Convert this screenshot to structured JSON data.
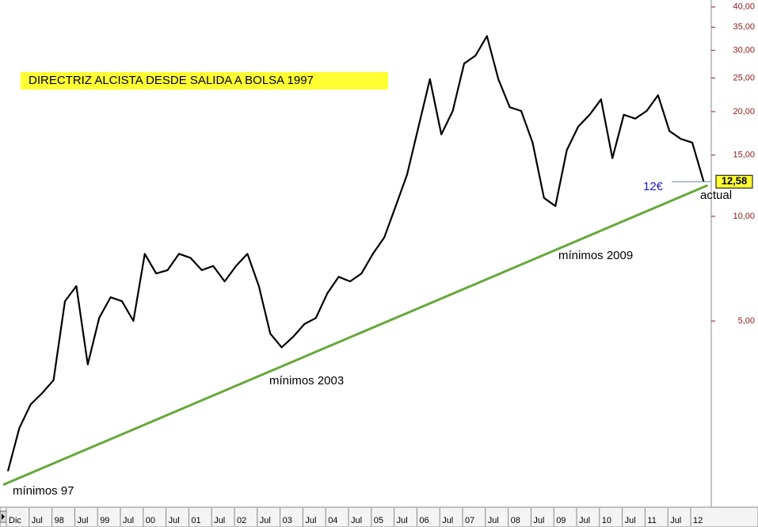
{
  "chart_data": {
    "type": "line",
    "title": "DIRECTRIZ ALCISTA DESDE SALIDA A BOLSA 1997",
    "x_labels": [
      "Dic",
      "Jul",
      "98",
      "Jul",
      "99",
      "Jul",
      "00",
      "Jul",
      "01",
      "Jul",
      "02",
      "Jul",
      "03",
      "Jul",
      "04",
      "Jul",
      "05",
      "Jul",
      "06",
      "Jul",
      "07",
      "Jul",
      "08",
      "Jul",
      "09",
      "Jul",
      "10",
      "Jul",
      "11",
      "Jul",
      "12"
    ],
    "log_scale": true,
    "ylim": [
      1.48,
      41.9
    ],
    "yticks": [
      {
        "value": 5,
        "label": "5,00"
      },
      {
        "value": 10,
        "label": "10,00"
      },
      {
        "value": 15,
        "label": "15,00"
      },
      {
        "value": 20,
        "label": "20,00"
      },
      {
        "value": 25,
        "label": "25,00"
      },
      {
        "value": 30,
        "label": "30,00"
      },
      {
        "value": 35,
        "label": "35,00"
      },
      {
        "value": 40,
        "label": "40,00"
      }
    ],
    "series": [
      {
        "color": "#000000",
        "values": [
          1.85,
          2.46,
          2.88,
          3.1,
          3.38,
          5.7,
          6.3,
          3.75,
          5.1,
          5.85,
          5.7,
          5.0,
          7.8,
          6.85,
          7.0,
          7.8,
          7.6,
          7.0,
          7.2,
          6.5,
          7.2,
          7.8,
          6.3,
          4.6,
          4.2,
          4.5,
          4.9,
          5.1,
          6.0,
          6.7,
          6.5,
          6.85,
          7.8,
          8.7,
          10.7,
          13.2,
          18.1,
          24.8,
          17.2,
          20.1,
          27.5,
          29.0,
          33.0,
          24.8,
          20.6,
          20.1,
          16.3,
          11.3,
          10.7,
          15.5,
          18.1,
          19.6,
          21.7,
          14.7,
          19.6,
          19.1,
          20.1,
          22.3,
          17.6,
          16.7,
          16.3,
          12.58
        ]
      }
    ],
    "trendline": {
      "color": "#66a83a",
      "values": [
        1.69,
        12.28
      ]
    },
    "last_price": {
      "value": 12.58,
      "label": "12,58"
    },
    "annotations": [
      "mínimos 97",
      "mínimos 2003",
      "mínimos 2009",
      "12€",
      "actual"
    ]
  }
}
